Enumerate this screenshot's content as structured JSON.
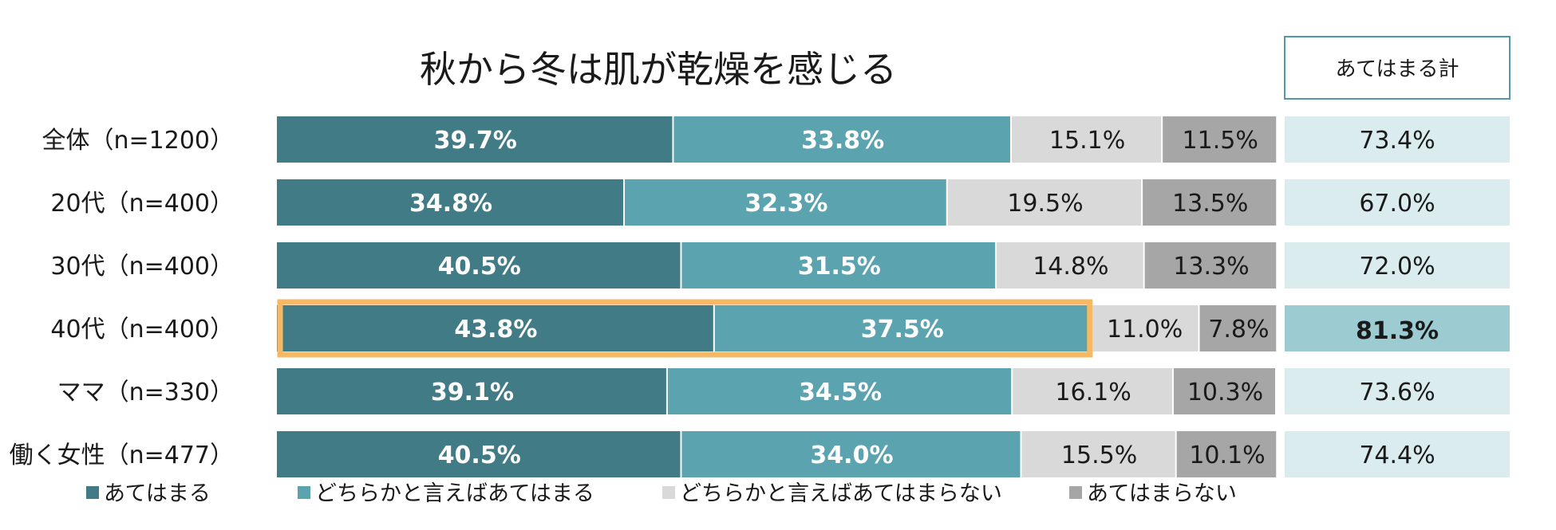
{
  "chart_data": {
    "type": "bar",
    "stacked": true,
    "orientation": "horizontal",
    "title": "秋から冬は肌が乾燥を感じる",
    "total_header": "あてはまる計",
    "categories": [
      "全体（n=1200）",
      "20代（n=400）",
      "30代（n=400）",
      "40代（n=400）",
      "ママ（n=330）",
      "働く女性（n=477）"
    ],
    "series": [
      {
        "name": "あてはまる",
        "color": "#417b85",
        "text_color": "#ffffff",
        "bold": true,
        "values": [
          39.7,
          34.8,
          40.5,
          43.8,
          39.1,
          40.5
        ],
        "labels": [
          "39.7%",
          "34.8%",
          "40.5%",
          "43.8%",
          "39.1%",
          "40.5%"
        ]
      },
      {
        "name": "どちらかと言えばあてはまる",
        "color": "#5ba3af",
        "text_color": "#ffffff",
        "bold": true,
        "values": [
          33.8,
          32.3,
          31.5,
          37.5,
          34.5,
          34.0
        ],
        "labels": [
          "33.8%",
          "32.3%",
          "31.5%",
          "37.5%",
          "34.5%",
          "34.0%"
        ]
      },
      {
        "name": "どちらかと言えばあてはまらない",
        "color": "#d9d9d9",
        "text_color": "#1a1a1a",
        "bold": false,
        "values": [
          15.1,
          19.5,
          14.8,
          11.0,
          16.1,
          15.5
        ],
        "labels": [
          "15.1%",
          "19.5%",
          "14.8%",
          "11.0%",
          "16.1%",
          "15.5%"
        ]
      },
      {
        "name": "あてはまらない",
        "color": "#a6a6a6",
        "text_color": "#1a1a1a",
        "bold": false,
        "values": [
          11.5,
          13.5,
          13.3,
          7.8,
          10.3,
          10.1
        ],
        "labels": [
          "11.5%",
          "13.5%",
          "13.3%",
          "7.8%",
          "10.3%",
          "10.1%"
        ]
      }
    ],
    "totals": {
      "values": [
        73.4,
        67.0,
        72.0,
        81.3,
        73.6,
        74.4
      ],
      "labels": [
        "73.4%",
        "67.0%",
        "72.0%",
        "81.3%",
        "73.6%",
        "74.4%"
      ],
      "color": "#dbecee",
      "highlight_color": "#9ccbd1"
    },
    "highlight_row": 3,
    "highlight_border_color": "#f5b865",
    "xlim": [
      0,
      100
    ],
    "legend_position": "bottom"
  }
}
